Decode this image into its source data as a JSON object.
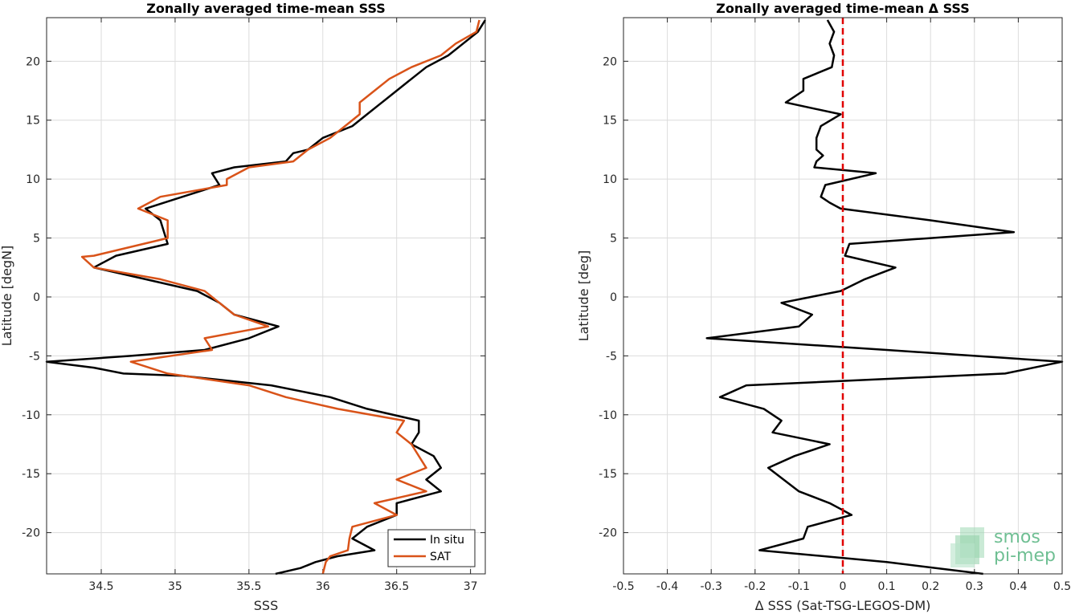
{
  "chart_data": [
    {
      "type": "line",
      "title": "Zonally averaged time-mean SSS",
      "xlabel": "SSS",
      "ylabel": "Latitude [degN]",
      "xlim": [
        34.13,
        37.1
      ],
      "ylim": [
        -23.5,
        23.7
      ],
      "xticks": [
        34.5,
        35,
        35.5,
        36,
        36.5,
        37
      ],
      "xtick_labels": [
        "34.5",
        "35",
        "35.5",
        "36",
        "36.5",
        "37"
      ],
      "yticks": [
        -20,
        -15,
        -10,
        -5,
        0,
        5,
        10,
        15,
        20
      ],
      "ytick_labels": [
        "-20",
        "-15",
        "-10",
        "-5",
        "0",
        "5",
        "10",
        "15",
        "20"
      ],
      "grid": true,
      "legend": "bottom-right",
      "series": [
        {
          "name": "In situ",
          "color": "#000000",
          "points": [
            [
              37.1,
              23.5
            ],
            [
              37.05,
              22.5
            ],
            [
              36.95,
              21.5
            ],
            [
              36.85,
              20.5
            ],
            [
              36.7,
              19.5
            ],
            [
              36.6,
              18.5
            ],
            [
              36.5,
              17.5
            ],
            [
              36.4,
              16.5
            ],
            [
              36.3,
              15.5
            ],
            [
              36.2,
              14.5
            ],
            [
              36.0,
              13.5
            ],
            [
              35.9,
              12.5
            ],
            [
              35.8,
              12.2
            ],
            [
              35.75,
              11.5
            ],
            [
              35.4,
              11.0
            ],
            [
              35.25,
              10.5
            ],
            [
              35.3,
              9.5
            ],
            [
              35.05,
              8.5
            ],
            [
              34.8,
              7.5
            ],
            [
              34.9,
              6.5
            ],
            [
              34.95,
              4.5
            ],
            [
              34.6,
              3.5
            ],
            [
              34.45,
              2.5
            ],
            [
              34.8,
              1.5
            ],
            [
              35.15,
              0.5
            ],
            [
              35.3,
              -0.5
            ],
            [
              35.4,
              -1.5
            ],
            [
              35.7,
              -2.5
            ],
            [
              35.5,
              -3.5
            ],
            [
              35.2,
              -4.5
            ],
            [
              34.7,
              -5.0
            ],
            [
              34.13,
              -5.5
            ],
            [
              34.45,
              -6.0
            ],
            [
              34.65,
              -6.5
            ],
            [
              35.05,
              -6.7
            ],
            [
              35.65,
              -7.5
            ],
            [
              36.05,
              -8.5
            ],
            [
              36.3,
              -9.5
            ],
            [
              36.65,
              -10.5
            ],
            [
              36.65,
              -11.5
            ],
            [
              36.6,
              -12.5
            ],
            [
              36.75,
              -13.5
            ],
            [
              36.8,
              -14.5
            ],
            [
              36.7,
              -15.5
            ],
            [
              36.8,
              -16.5
            ],
            [
              36.5,
              -17.5
            ],
            [
              36.5,
              -18.5
            ],
            [
              36.3,
              -19.5
            ],
            [
              36.2,
              -20.5
            ],
            [
              36.35,
              -21.5
            ],
            [
              36.1,
              -22.0
            ],
            [
              35.95,
              -22.5
            ],
            [
              35.85,
              -23.0
            ],
            [
              35.68,
              -23.5
            ]
          ]
        },
        {
          "name": "SAT",
          "color": "#d95319",
          "points": [
            [
              37.06,
              23.5
            ],
            [
              37.04,
              22.5
            ],
            [
              36.9,
              21.5
            ],
            [
              36.8,
              20.5
            ],
            [
              36.6,
              19.5
            ],
            [
              36.45,
              18.5
            ],
            [
              36.35,
              17.5
            ],
            [
              36.25,
              16.5
            ],
            [
              36.25,
              15.5
            ],
            [
              36.15,
              14.5
            ],
            [
              36.05,
              13.5
            ],
            [
              35.9,
              12.5
            ],
            [
              35.8,
              11.5
            ],
            [
              35.5,
              11.0
            ],
            [
              35.35,
              10.0
            ],
            [
              35.35,
              9.5
            ],
            [
              34.9,
              8.5
            ],
            [
              34.75,
              7.5
            ],
            [
              34.95,
              6.5
            ],
            [
              34.95,
              5.0
            ],
            [
              34.45,
              3.5
            ],
            [
              34.37,
              3.4
            ],
            [
              34.45,
              2.5
            ],
            [
              34.9,
              1.5
            ],
            [
              35.2,
              0.5
            ],
            [
              35.3,
              -0.5
            ],
            [
              35.4,
              -1.5
            ],
            [
              35.63,
              -2.5
            ],
            [
              35.2,
              -3.5
            ],
            [
              35.25,
              -4.5
            ],
            [
              34.7,
              -5.5
            ],
            [
              34.95,
              -6.5
            ],
            [
              35.5,
              -7.5
            ],
            [
              35.75,
              -8.5
            ],
            [
              36.1,
              -9.5
            ],
            [
              36.55,
              -10.5
            ],
            [
              36.5,
              -11.5
            ],
            [
              36.6,
              -12.5
            ],
            [
              36.7,
              -14.5
            ],
            [
              36.5,
              -15.5
            ],
            [
              36.7,
              -16.5
            ],
            [
              36.35,
              -17.5
            ],
            [
              36.5,
              -18.5
            ],
            [
              36.2,
              -19.5
            ],
            [
              36.18,
              -20.5
            ],
            [
              36.17,
              -21.5
            ],
            [
              36.05,
              -22.0
            ],
            [
              36.02,
              -22.5
            ],
            [
              36.0,
              -23.5
            ]
          ]
        }
      ]
    },
    {
      "type": "line",
      "title": "Zonally averaged time-mean Δ SSS",
      "xlabel": "Δ SSS (Sat-TSG-LEGOS-DM)",
      "ylabel": "Latitude [deg]",
      "xlim": [
        -0.5,
        0.5
      ],
      "ylim": [
        -23.5,
        23.7
      ],
      "xticks": [
        -0.5,
        -0.4,
        -0.3,
        -0.2,
        -0.1,
        0,
        0.1,
        0.2,
        0.3,
        0.4,
        0.5
      ],
      "xtick_labels": [
        "-0.5",
        "-0.4",
        "-0.3",
        "-0.2",
        "-0.1",
        "0",
        "0.1",
        "0.2",
        "0.3",
        "0.4",
        "0.5"
      ],
      "yticks": [
        -20,
        -15,
        -10,
        -5,
        0,
        5,
        10,
        15,
        20
      ],
      "ytick_labels": [
        "-20",
        "-15",
        "-10",
        "-5",
        "0",
        "5",
        "10",
        "15",
        "20"
      ],
      "grid": true,
      "reference_line": {
        "x": 0,
        "color": "#e00000",
        "style": "dashed"
      },
      "series": [
        {
          "color": "#000000",
          "points": [
            [
              -0.035,
              23.5
            ],
            [
              -0.02,
              22.5
            ],
            [
              -0.03,
              21.5
            ],
            [
              -0.02,
              20.5
            ],
            [
              -0.025,
              19.5
            ],
            [
              -0.09,
              18.5
            ],
            [
              -0.09,
              17.5
            ],
            [
              -0.13,
              16.5
            ],
            [
              -0.005,
              15.5
            ],
            [
              -0.05,
              14.5
            ],
            [
              -0.06,
              13.5
            ],
            [
              -0.06,
              12.5
            ],
            [
              -0.045,
              12.0
            ],
            [
              -0.06,
              11.5
            ],
            [
              -0.065,
              11.0
            ],
            [
              0.075,
              10.5
            ],
            [
              -0.04,
              9.5
            ],
            [
              -0.05,
              8.5
            ],
            [
              -0.03,
              8.0
            ],
            [
              -0.005,
              7.5
            ],
            [
              0.2,
              6.5
            ],
            [
              0.39,
              5.5
            ],
            [
              0.015,
              4.5
            ],
            [
              0.005,
              3.5
            ],
            [
              0.12,
              2.5
            ],
            [
              0.05,
              1.5
            ],
            [
              -0.005,
              0.5
            ],
            [
              -0.14,
              -0.5
            ],
            [
              -0.07,
              -1.5
            ],
            [
              -0.1,
              -2.5
            ],
            [
              -0.31,
              -3.5
            ],
            [
              0.1,
              -4.5
            ],
            [
              0.5,
              -5.5
            ],
            [
              0.37,
              -6.5
            ],
            [
              -0.22,
              -7.5
            ],
            [
              -0.28,
              -8.5
            ],
            [
              -0.18,
              -9.5
            ],
            [
              -0.14,
              -10.5
            ],
            [
              -0.16,
              -11.5
            ],
            [
              -0.03,
              -12.5
            ],
            [
              -0.11,
              -13.5
            ],
            [
              -0.17,
              -14.5
            ],
            [
              -0.1,
              -16.5
            ],
            [
              -0.03,
              -17.5
            ],
            [
              -0.005,
              -18.0
            ],
            [
              0.02,
              -18.5
            ],
            [
              -0.08,
              -19.5
            ],
            [
              -0.09,
              -20.5
            ],
            [
              -0.19,
              -21.5
            ],
            [
              0.1,
              -22.5
            ],
            [
              0.32,
              -23.5
            ]
          ]
        }
      ]
    }
  ],
  "legend": {
    "items": [
      {
        "label": "In situ",
        "color": "#000000"
      },
      {
        "label": "SAT",
        "color": "#d95319"
      }
    ]
  },
  "logo": {
    "line1": "smos",
    "line2": "pi-mep",
    "color": "#6fbf93"
  }
}
